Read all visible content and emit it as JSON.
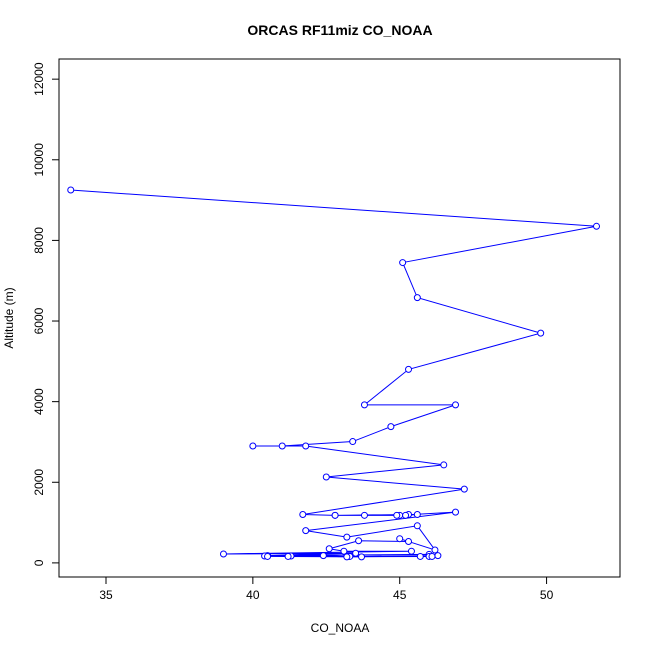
{
  "chart_data": {
    "type": "line",
    "title": "ORCAS RF11miz CO_NOAA",
    "xlabel": "CO_NOAA",
    "ylabel": "Altitude (m)",
    "xlim": [
      33.4,
      52.5
    ],
    "ylim": [
      -350,
      12500
    ],
    "x_ticks": [
      35,
      40,
      45,
      50
    ],
    "y_ticks": [
      0,
      2000,
      4000,
      6000,
      8000,
      10000,
      12000
    ],
    "grid": false,
    "color": "#0000ff",
    "series": [
      {
        "name": "",
        "points": [
          [
            33.8,
            9250
          ],
          [
            51.7,
            8350
          ],
          [
            45.1,
            7450
          ],
          [
            45.6,
            6580
          ],
          [
            49.8,
            5700
          ],
          [
            45.3,
            4800
          ],
          [
            43.8,
            3920
          ],
          [
            46.9,
            3920
          ],
          [
            44.7,
            3380
          ],
          [
            43.4,
            3010
          ],
          [
            41.0,
            2900
          ],
          [
            40.0,
            2900
          ],
          [
            41.8,
            2900
          ],
          [
            46.5,
            2430
          ],
          [
            42.5,
            2130
          ],
          [
            47.2,
            1830
          ],
          [
            41.7,
            1200
          ],
          [
            42.8,
            1180
          ],
          [
            45.3,
            1200
          ],
          [
            43.8,
            1180
          ],
          [
            45.0,
            1180
          ],
          [
            42.8,
            1180
          ],
          [
            45.2,
            1180
          ],
          [
            45.6,
            1200
          ],
          [
            44.9,
            1180
          ],
          [
            46.9,
            1260
          ],
          [
            41.8,
            800
          ],
          [
            43.2,
            640
          ],
          [
            45.6,
            920
          ],
          [
            46.2,
            320
          ],
          [
            45.0,
            600
          ],
          [
            45.3,
            530
          ],
          [
            43.6,
            550
          ],
          [
            42.6,
            350
          ],
          [
            43.1,
            290
          ],
          [
            45.4,
            290
          ],
          [
            39.0,
            220
          ],
          [
            43.5,
            240
          ],
          [
            40.5,
            180
          ],
          [
            46.0,
            210
          ],
          [
            46.3,
            180
          ],
          [
            43.2,
            160
          ],
          [
            42.4,
            180
          ],
          [
            41.3,
            170
          ],
          [
            40.4,
            170
          ],
          [
            43.3,
            160
          ],
          [
            43.7,
            150
          ],
          [
            41.2,
            160
          ],
          [
            40.5,
            160
          ],
          [
            45.7,
            160
          ],
          [
            46.0,
            160
          ],
          [
            46.1,
            160
          ],
          [
            43.2,
            150
          ]
        ]
      }
    ]
  }
}
